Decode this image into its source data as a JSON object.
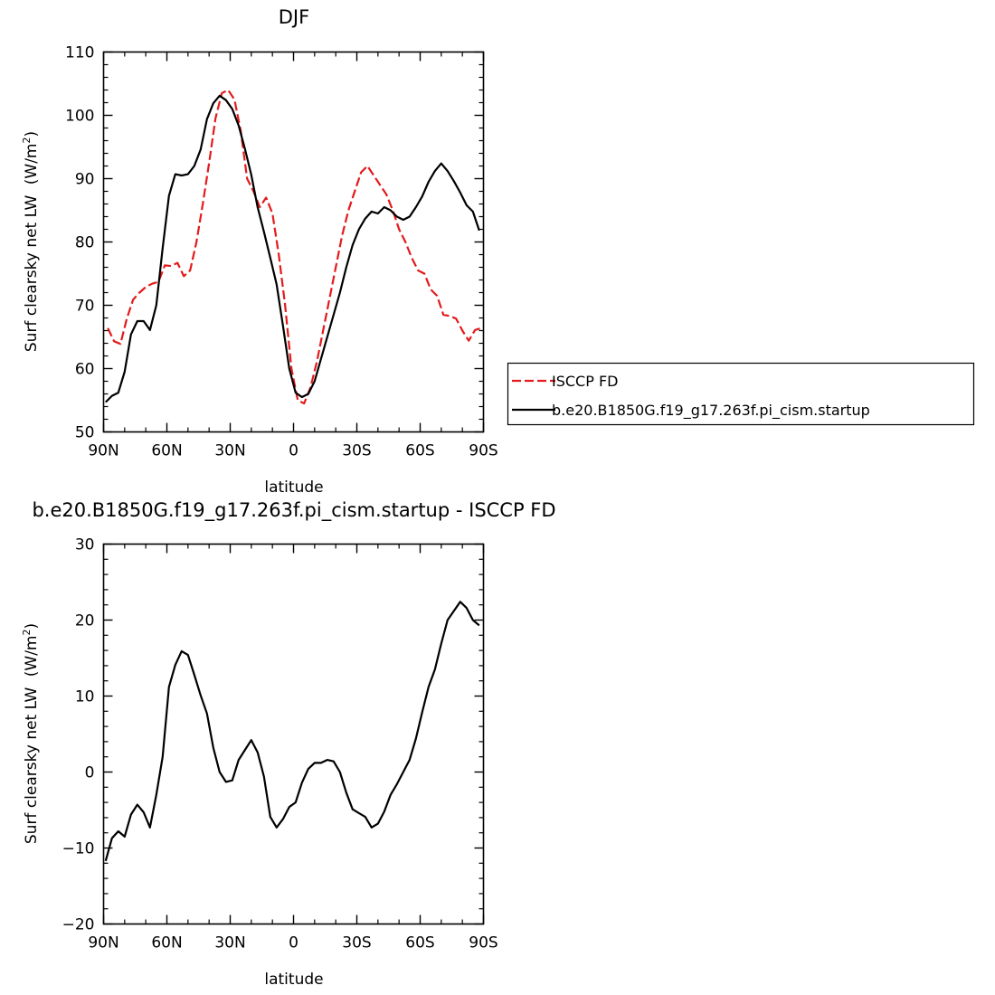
{
  "chart_data": [
    {
      "type": "line",
      "title": "DJF",
      "xlabel": "latitude",
      "ylabel": "Surf clearsky net LW",
      "ylabel_unit": "(W/m",
      "ylabel_unit_sup": "2",
      "ylabel_unit_close": ")",
      "xlim": [
        90,
        -90
      ],
      "ylim": [
        50,
        110
      ],
      "x_ticks": [
        90,
        60,
        30,
        0,
        -30,
        -60,
        -90
      ],
      "x_tick_labels": [
        "90N",
        "60N",
        "30N",
        "0",
        "30S",
        "60S",
        "90S"
      ],
      "y_ticks": [
        50,
        60,
        70,
        80,
        90,
        100,
        110
      ],
      "y_tick_labels": [
        "50",
        "60",
        "70",
        "80",
        "90",
        "100",
        "110"
      ],
      "legend_position": "right",
      "grid": false,
      "series": [
        {
          "name": "ISCCP FD",
          "color": "#e41a1c",
          "dash": "dashed",
          "x": [
            88,
            85,
            82,
            79,
            76,
            73,
            70,
            67,
            64,
            61,
            58,
            55,
            52,
            49,
            46,
            43,
            40,
            37,
            34,
            31,
            28,
            25,
            22,
            19,
            16,
            13,
            10,
            7,
            4,
            1,
            -2,
            -5,
            -8,
            -11,
            -14,
            -17,
            -20,
            -23,
            -26,
            -29,
            -32,
            -35,
            -38,
            -41,
            -44,
            -47,
            -50,
            -53,
            -56,
            -59,
            -62,
            -65,
            -68,
            -71,
            -74,
            -77,
            -80,
            -83,
            -86,
            -89
          ],
          "y": [
            66.4,
            64.3,
            63.9,
            67.9,
            70.9,
            72.0,
            72.9,
            73.4,
            73.7,
            76.3,
            76.2,
            76.7,
            74.6,
            75.5,
            80.0,
            86.0,
            92.5,
            99.5,
            103.5,
            104.0,
            102.5,
            97.5,
            90.0,
            88.0,
            85.5,
            87.0,
            84.5,
            78.0,
            70.0,
            60.0,
            55.0,
            54.5,
            57.0,
            61.0,
            66.0,
            71.0,
            76.0,
            81.0,
            85.0,
            88.0,
            91.0,
            92.0,
            90.5,
            89.0,
            87.5,
            85.0,
            82.0,
            80.0,
            77.5,
            75.5,
            75.0,
            72.5,
            71.5,
            68.5,
            68.3,
            67.9,
            66.0,
            64.4,
            66.1,
            66.4
          ]
        },
        {
          "name": "b.e20.B1850G.f19_g17.263f.pi_cism.startup",
          "color": "#000000",
          "dash": "solid",
          "x": [
            89,
            86,
            83,
            80,
            77,
            74,
            71,
            68,
            65,
            62,
            59,
            56,
            53,
            50,
            47,
            44,
            41,
            38,
            35,
            32,
            29,
            26,
            23,
            20,
            17,
            14,
            11,
            8,
            5,
            2,
            -1,
            -4,
            -7,
            -10,
            -13,
            -16,
            -19,
            -22,
            -25,
            -28,
            -31,
            -34,
            -37,
            -40,
            -43,
            -46,
            -49,
            -52,
            -55,
            -58,
            -61,
            -64,
            -67,
            -70,
            -73,
            -76,
            -79,
            -82,
            -85,
            -88
          ],
          "y": [
            54.7,
            55.7,
            56.2,
            59.5,
            65.4,
            67.5,
            67.5,
            66.1,
            70.0,
            79.0,
            87.3,
            90.7,
            90.5,
            90.7,
            92.0,
            94.6,
            99.4,
            101.9,
            103.1,
            102.4,
            101.0,
            98.4,
            94.7,
            90.6,
            85.5,
            81.6,
            77.5,
            73.3,
            66.8,
            60.0,
            56.2,
            55.5,
            56.0,
            58.0,
            61.5,
            65.0,
            68.5,
            72.0,
            76.0,
            79.5,
            82.0,
            83.7,
            84.8,
            84.5,
            85.5,
            85.0,
            84.0,
            83.5,
            84.0,
            85.5,
            87.2,
            89.5,
            91.2,
            92.4,
            91.2,
            89.6,
            87.8,
            85.8,
            84.8,
            81.8
          ]
        }
      ]
    },
    {
      "type": "line",
      "title": "b.e20.B1850G.f19_g17.263f.pi_cism.startup - ISCCP FD",
      "xlabel": "latitude",
      "ylabel": "Surf clearsky net LW",
      "ylabel_unit": "(W/m",
      "ylabel_unit_sup": "2",
      "ylabel_unit_close": ")",
      "xlim": [
        90,
        -90
      ],
      "ylim": [
        -20,
        30
      ],
      "x_ticks": [
        90,
        60,
        30,
        0,
        -30,
        -60,
        -90
      ],
      "x_tick_labels": [
        "90N",
        "60N",
        "30N",
        "0",
        "30S",
        "60S",
        "90S"
      ],
      "y_ticks": [
        -20,
        -10,
        0,
        10,
        20,
        30
      ],
      "y_tick_labels": [
        "−20",
        "−10",
        "0",
        "10",
        "20",
        "30"
      ],
      "grid": false,
      "series": [
        {
          "color": "#000000",
          "dash": "solid",
          "x": [
            89,
            86,
            83,
            80,
            77,
            74,
            71,
            68,
            65,
            62,
            59,
            56,
            53,
            50,
            47,
            44,
            41,
            38,
            35,
            32,
            29,
            26,
            23,
            20,
            17,
            14,
            11,
            8,
            5,
            2,
            -1,
            -4,
            -7,
            -10,
            -13,
            -16,
            -19,
            -22,
            -25,
            -28,
            -31,
            -34,
            -37,
            -40,
            -43,
            -46,
            -49,
            -52,
            -55,
            -58,
            -61,
            -64,
            -67,
            -70,
            -73,
            -76,
            -79,
            -82,
            -85,
            -88
          ],
          "y": [
            -11.7,
            -8.7,
            -7.8,
            -8.5,
            -5.6,
            -4.3,
            -5.3,
            -7.3,
            -3.0,
            2.0,
            11.2,
            14.1,
            15.9,
            15.4,
            12.8,
            10.1,
            7.7,
            3.2,
            0.0,
            -1.3,
            -1.1,
            1.6,
            2.9,
            4.2,
            2.6,
            -0.6,
            -5.9,
            -7.3,
            -6.2,
            -4.6,
            -4.0,
            -1.4,
            0.4,
            1.2,
            1.2,
            1.6,
            1.4,
            0.0,
            -2.7,
            -4.9,
            -5.4,
            -5.9,
            -7.3,
            -6.8,
            -5.2,
            -3.0,
            -1.6,
            0.0,
            1.6,
            4.4,
            7.9,
            11.2,
            13.5,
            16.9,
            20.0,
            21.2,
            22.4,
            21.6,
            20.0,
            19.3
          ]
        }
      ]
    }
  ]
}
